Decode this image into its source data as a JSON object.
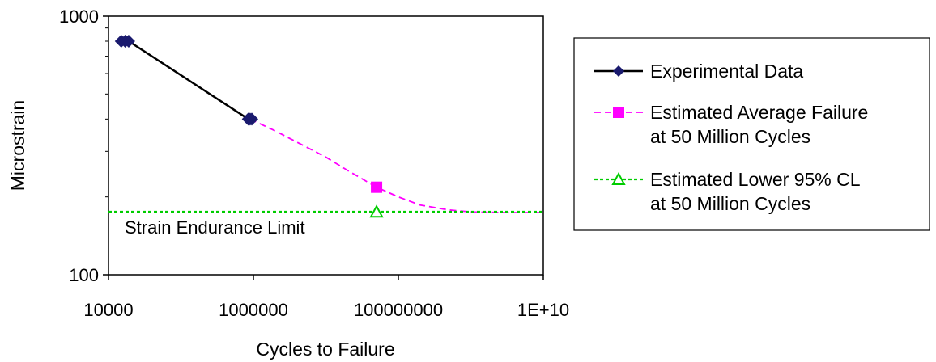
{
  "chart_data": {
    "type": "line",
    "xlabel": "Cycles to Failure",
    "ylabel": "Microstrain",
    "x_scale": "log",
    "y_scale": "log",
    "xlim": [
      10000,
      10000000000
    ],
    "ylim": [
      100,
      1000
    ],
    "x_ticks": [
      10000,
      1000000,
      100000000,
      10000000000
    ],
    "x_tick_labels": [
      "10000",
      "1000000",
      "100000000",
      "1E+10"
    ],
    "y_ticks": [
      100,
      1000
    ],
    "y_tick_labels": [
      "100",
      "1000"
    ],
    "grid": false,
    "legend_position": "right",
    "annotation": "Strain Endurance Limit",
    "series": [
      {
        "name": "Experimental Data",
        "color": "#000000",
        "marker_color": "#1a1a6e",
        "marker": "diamond",
        "line_style": "solid",
        "x": [
          15000,
          17000,
          19000,
          850000,
          900000,
          950000
        ],
        "y": [
          800,
          800,
          800,
          400,
          400,
          400
        ]
      },
      {
        "name": "Estimated Average Failure at 50 Million Cycles",
        "color": "#ff00ff",
        "marker": "square",
        "line_style": "dashed",
        "x": [
          900000,
          2000000,
          5000000,
          10000000,
          20000000,
          50000000,
          100000000,
          200000000,
          500000000,
          1000000000,
          3000000000,
          10000000000
        ],
        "y": [
          400,
          360,
          315,
          285,
          253,
          218,
          200,
          186,
          178,
          175,
          174,
          174
        ],
        "marker_points": [
          {
            "x": 50000000,
            "y": 218
          }
        ]
      },
      {
        "name": "Estimated Lower 95% CL at 50 Million Cycles",
        "color": "#00cc00",
        "marker": "triangle",
        "line_style": "dotted",
        "x": [
          10000,
          10000000000
        ],
        "y": [
          175,
          175
        ],
        "marker_points": [
          {
            "x": 50000000,
            "y": 175
          }
        ]
      }
    ]
  },
  "legend": {
    "entries": [
      [
        "Experimental Data"
      ],
      [
        "Estimated Average Failure",
        "at 50 Million Cycles"
      ],
      [
        "Estimated Lower 95% CL",
        "at 50 Million Cycles"
      ]
    ]
  }
}
